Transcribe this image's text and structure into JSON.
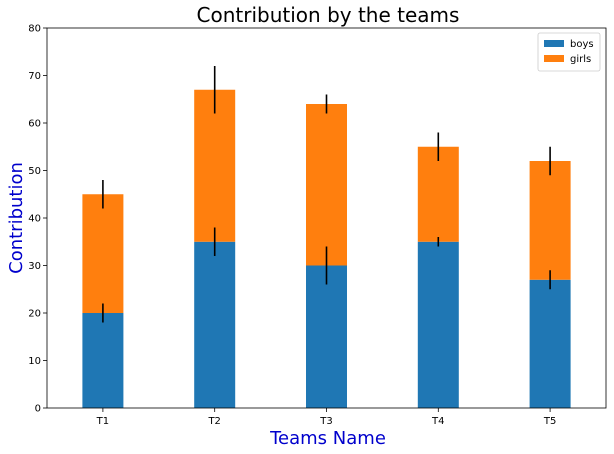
{
  "chart_data": {
    "type": "bar",
    "stacked": true,
    "title": "Contribution by the teams",
    "xlabel": "Teams Name",
    "ylabel": "Contribution",
    "label_color": "#0000cc",
    "categories": [
      "T1",
      "T2",
      "T3",
      "T4",
      "T5"
    ],
    "ylim": [
      0,
      80
    ],
    "yticks": [
      0,
      10,
      20,
      30,
      40,
      50,
      60,
      70,
      80
    ],
    "grid": false,
    "legend_position": "top-right",
    "series": [
      {
        "name": "boys",
        "color": "#1f77b4",
        "values": [
          20,
          35,
          30,
          35,
          27
        ],
        "errors": [
          2,
          3,
          4,
          1,
          2
        ]
      },
      {
        "name": "girls",
        "color": "#ff7f0e",
        "values": [
          25,
          32,
          34,
          20,
          25
        ],
        "errors": [
          3,
          5,
          2,
          3,
          3
        ]
      }
    ]
  }
}
